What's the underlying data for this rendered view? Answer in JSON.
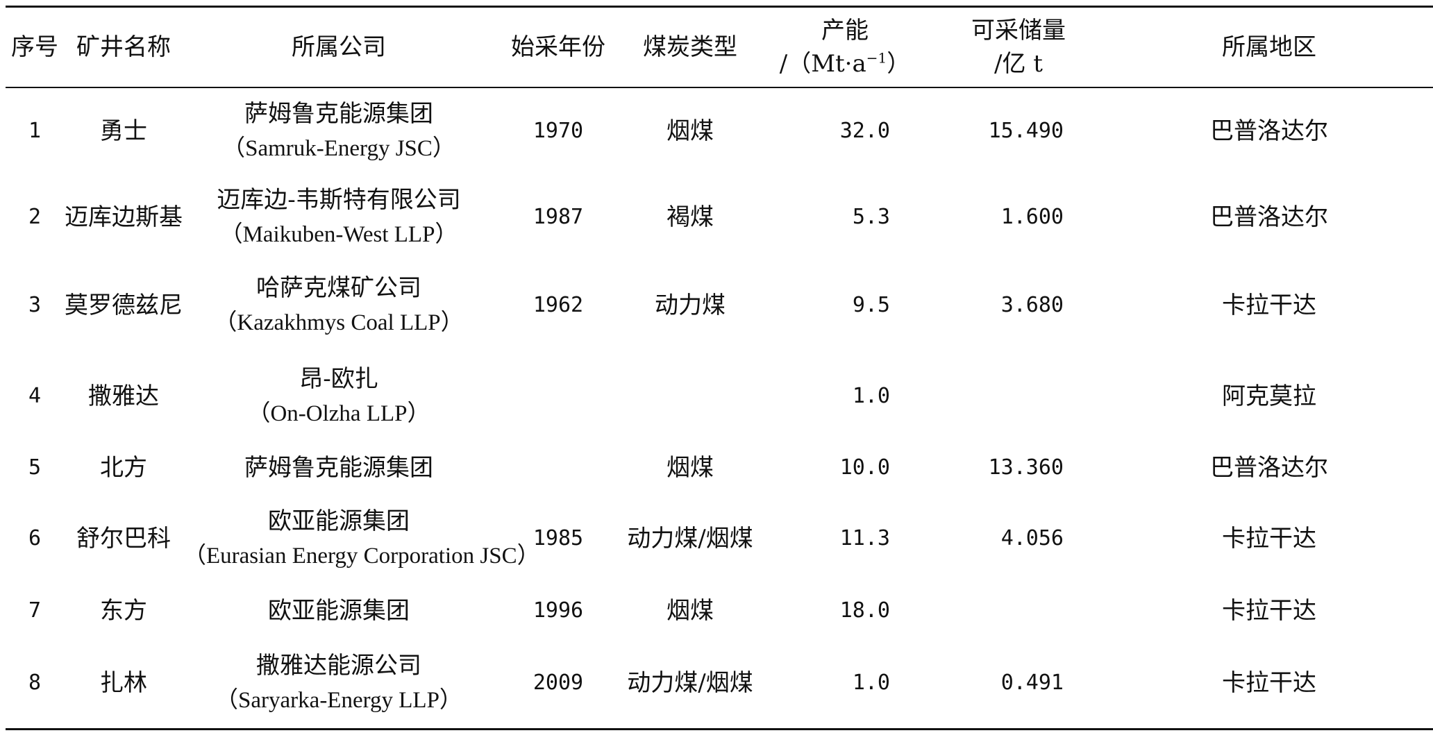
{
  "headers": {
    "index": "序号",
    "mine_name": "矿井名称",
    "company": "所属公司",
    "start_year": "始采年份",
    "coal_type": "煤炭类型",
    "capacity_line1": "产能",
    "capacity_line2_pre": "/（Mt·a",
    "capacity_line2_sup": "−1",
    "capacity_line2_post": "）",
    "reserves_line1": "可采储量",
    "reserves_line2": "/亿 t",
    "region": "所属地区"
  },
  "rows": [
    {
      "index": "1",
      "mine": "勇士",
      "company_cn": "萨姆鲁克能源集团",
      "company_en": "（Samruk-Energy JSC）",
      "year": "1970",
      "coal": "烟煤",
      "capacity": "32.0",
      "reserves": "15.490",
      "region": "巴普洛达尔"
    },
    {
      "index": "2",
      "mine": "迈库边斯基",
      "company_cn": "迈库边-韦斯特有限公司",
      "company_en": "（Maikuben-West LLP）",
      "year": "1987",
      "coal": "褐煤",
      "capacity": "5.3",
      "reserves": "1.600",
      "region": "巴普洛达尔"
    },
    {
      "index": "3",
      "mine": "莫罗德兹尼",
      "company_cn": "哈萨克煤矿公司",
      "company_en": "（Kazakhmys Coal LLP）",
      "year": "1962",
      "coal": "动力煤",
      "capacity": "9.5",
      "reserves": "3.680",
      "region": "卡拉干达"
    },
    {
      "index": "4",
      "mine": "撒雅达",
      "company_cn": "昂-欧扎",
      "company_en": "（On-Olzha LLP）",
      "year": "",
      "coal": "",
      "capacity": "1.0",
      "reserves": "",
      "region": "阿克莫拉"
    },
    {
      "index": "5",
      "mine": "北方",
      "company_cn": "萨姆鲁克能源集团",
      "company_en": "",
      "year": "",
      "coal": "烟煤",
      "capacity": "10.0",
      "reserves": "13.360",
      "region": "巴普洛达尔"
    },
    {
      "index": "6",
      "mine": "舒尔巴科",
      "company_cn": "欧亚能源集团",
      "company_en": "（Eurasian Energy Corporation JSC）",
      "year": "1985",
      "coal": "动力煤/烟煤",
      "capacity": "11.3",
      "reserves": "4.056",
      "region": "卡拉干达"
    },
    {
      "index": "7",
      "mine": "东方",
      "company_cn": "欧亚能源集团",
      "company_en": "",
      "year": "1996",
      "coal": "烟煤",
      "capacity": "18.0",
      "reserves": "",
      "region": "卡拉干达"
    },
    {
      "index": "8",
      "mine": "扎林",
      "company_cn": "撒雅达能源公司",
      "company_en": "（Saryarka-Energy LLP）",
      "year": "2009",
      "coal": "动力煤/烟煤",
      "capacity": "1.0",
      "reserves": "0.491",
      "region": "卡拉干达"
    }
  ]
}
